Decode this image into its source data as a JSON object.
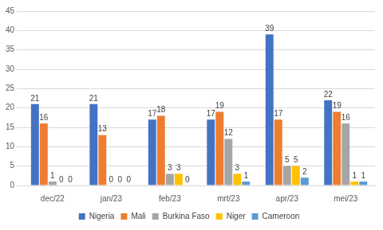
{
  "chart_data": {
    "type": "bar",
    "categories": [
      "dec/22",
      "jan/23",
      "feb/23",
      "mrt/23",
      "apr/23",
      "mei/23"
    ],
    "series": [
      {
        "name": "Nigeria",
        "color": "#4472c4",
        "values": [
          21,
          21,
          17,
          17,
          39,
          22
        ]
      },
      {
        "name": "Mali",
        "color": "#ed7d31",
        "values": [
          16,
          13,
          18,
          19,
          17,
          19
        ]
      },
      {
        "name": "Burkina Faso",
        "color": "#a5a5a5",
        "values": [
          1,
          0,
          3,
          12,
          5,
          16
        ]
      },
      {
        "name": "Niger",
        "color": "#ffc000",
        "values": [
          0,
          0,
          3,
          3,
          5,
          1
        ]
      },
      {
        "name": "Cameroon",
        "color": "#5b9bd5",
        "values": [
          0,
          0,
          0,
          1,
          2,
          1
        ]
      }
    ],
    "ylim": [
      0,
      45
    ],
    "yticks": [
      0,
      5,
      10,
      15,
      20,
      25,
      30,
      35,
      40,
      45
    ],
    "grid": true,
    "legend": "bottom",
    "data_labels": true
  }
}
